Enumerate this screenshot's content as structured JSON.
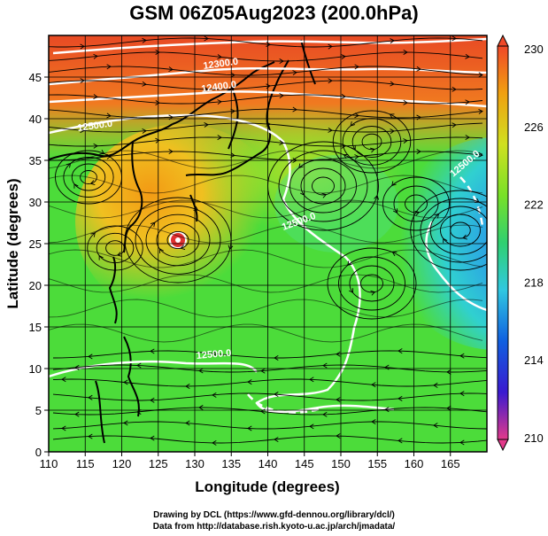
{
  "title": "GSM 06Z05Aug2023 (200.0hPa)",
  "map": {
    "xlabel": "Longitude (degrees)",
    "ylabel": "Latitude  (degrees)",
    "lon_range": [
      110,
      170
    ],
    "lat_range": [
      0,
      50
    ],
    "lon_ticks": [
      "110",
      "115",
      "120",
      "125",
      "130",
      "135",
      "140",
      "145",
      "150",
      "155",
      "160",
      "165"
    ],
    "lat_ticks": [
      "0",
      "5",
      "10",
      "15",
      "20",
      "25",
      "30",
      "35",
      "40",
      "45"
    ],
    "grid": true,
    "contour_labels": [
      "12300.0",
      "12400.0",
      "12500.0",
      "12500.0",
      "12500.0",
      "12500.0"
    ],
    "field": "temperature (shaded)",
    "overlays": [
      "geopotential height contours (white)",
      "streamlines (black)",
      "coastlines"
    ]
  },
  "colorbar": {
    "ticks": [
      "230",
      "226",
      "222",
      "218",
      "214",
      "210"
    ],
    "min": 210,
    "max": 230,
    "colors": [
      "#e23a8a",
      "#3a1ad0",
      "#1060e0",
      "#30c8e0",
      "#30d070",
      "#78e028",
      "#d0e020",
      "#f0a010",
      "#f04828"
    ]
  },
  "credits": {
    "line1": "Drawing by DCL (https://www.gfd-dennou.org/library/dcl/)",
    "line2": "Data from http://database.rish.kyoto-u.ac.jp/arch/jmadata/"
  }
}
